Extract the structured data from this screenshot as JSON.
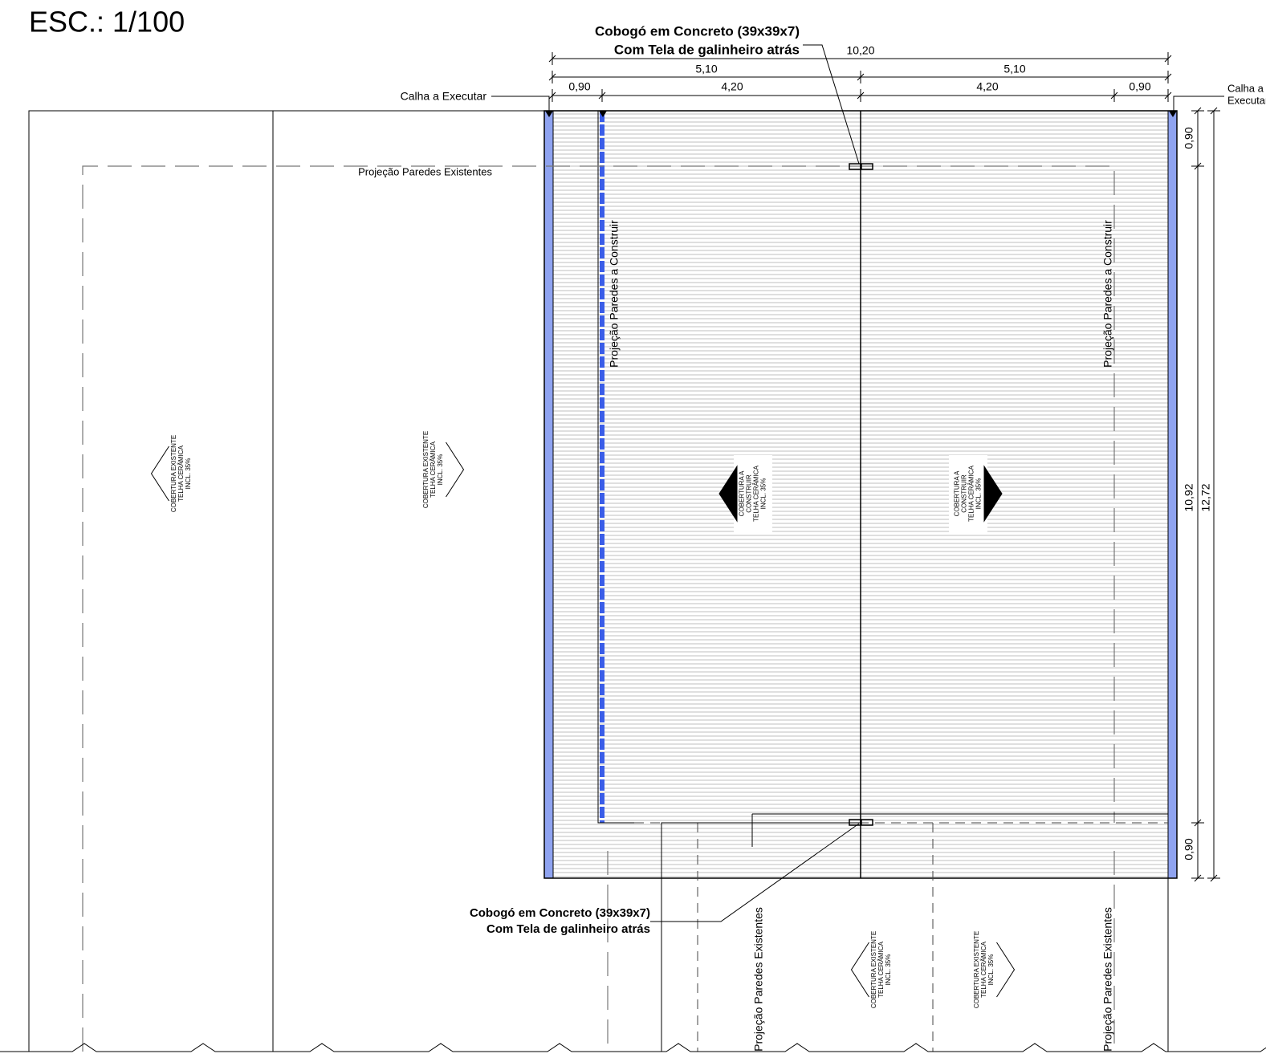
{
  "scale": "ESC.: 1/100",
  "callouts": {
    "cobogo_top": [
      "Cobogó em Concreto (39x39x7)",
      "Com Tela de galinheiro atrás"
    ],
    "cobogo_bottom": [
      "Cobogó em Concreto (39x39x7)",
      "Com Tela de galinheiro atrás"
    ],
    "calha_left": "Calha a Executar",
    "calha_right": [
      "Calha a",
      "Executar"
    ]
  },
  "dimensions": {
    "overall_width": "10,20",
    "half_left": "5,10",
    "half_right": "5,10",
    "gutter_left": "0,90",
    "span_left": "4,20",
    "span_right": "4,20",
    "gutter_right": "0,90",
    "depth_top": "0,90",
    "depth_middle": "10,92",
    "depth_bottom": "0,90",
    "depth_total": "12,72"
  },
  "labels": {
    "existing_walls_top": "Projeção Paredes Existentes",
    "new_walls_left": "Projeção Paredes a Construir",
    "new_walls_right": "Projeção Paredes a Construir",
    "existing_walls_bottom_left": "Projeção Paredes Existentes",
    "existing_walls_bottom_right": "Projeção Paredes Existentes"
  },
  "roofs": [
    {
      "lines": [
        "COBERTURA EXISTENTE",
        "TELHA CERÂMICA",
        "INCL. 35%"
      ]
    },
    {
      "lines": [
        "COBERTURA EXISTENTE",
        "TELHA CERÂMICA",
        "INCL. 35%"
      ]
    },
    {
      "lines": [
        "COBERTURA A",
        "CONSTRUIR",
        "TELHA CERÂMICA",
        "INCL. 35%"
      ]
    },
    {
      "lines": [
        "COBERTURA A",
        "CONSTRUIR",
        "TELHA CERÂMICA",
        "INCL. 35%"
      ]
    },
    {
      "lines": [
        "COBERTURA EXISTENTE",
        "TELHA CERÂMICA",
        "INCL. 35%"
      ]
    },
    {
      "lines": [
        "COBERTURA EXISTENTE",
        "TELHA CERÂMICA",
        "INCL. 35%"
      ]
    }
  ]
}
